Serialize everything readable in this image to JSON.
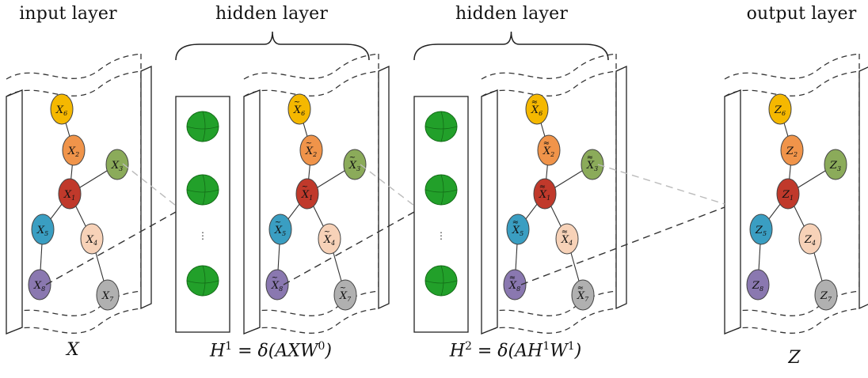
{
  "layer_titles": {
    "input": "input layer",
    "hidden1": "hidden layer",
    "hidden2": "hidden layer",
    "output": "output layer"
  },
  "formulas": {
    "input": "X",
    "h1_lhs": "H",
    "h1_sup": "1",
    "h1_rhs": " = δ(AXW",
    "h1_rhs_sup": "0",
    "h1_close": ")",
    "h2_lhs": "H",
    "h2_sup": "2",
    "h2_rhs": " = δ(AH",
    "h2_rhs_sup1": "1",
    "h2_rhs_w": "W",
    "h2_rhs_sup2": "1",
    "h2_close": ")",
    "output": "Z"
  },
  "graph_nodes": [
    {
      "id": "6",
      "color": "#f5b800"
    },
    {
      "id": "2",
      "color": "#f0944a"
    },
    {
      "id": "3",
      "color": "#8bab5a"
    },
    {
      "id": "1",
      "color": "#c0392b"
    },
    {
      "id": "5",
      "color": "#3a9ec2"
    },
    {
      "id": "4",
      "color": "#f7d2b8"
    },
    {
      "id": "8",
      "color": "#8a78b0"
    },
    {
      "id": "7",
      "color": "#b0b0b0"
    }
  ],
  "panels": [
    {
      "name": "input",
      "var": "X",
      "tilde": false
    },
    {
      "name": "hidden1",
      "var": "X",
      "tilde": "single"
    },
    {
      "name": "hidden2",
      "var": "X",
      "tilde": "double"
    },
    {
      "name": "output",
      "var": "Z",
      "tilde": false
    }
  ],
  "neuron_color": "#22a02a",
  "ellipsis": "⋮"
}
